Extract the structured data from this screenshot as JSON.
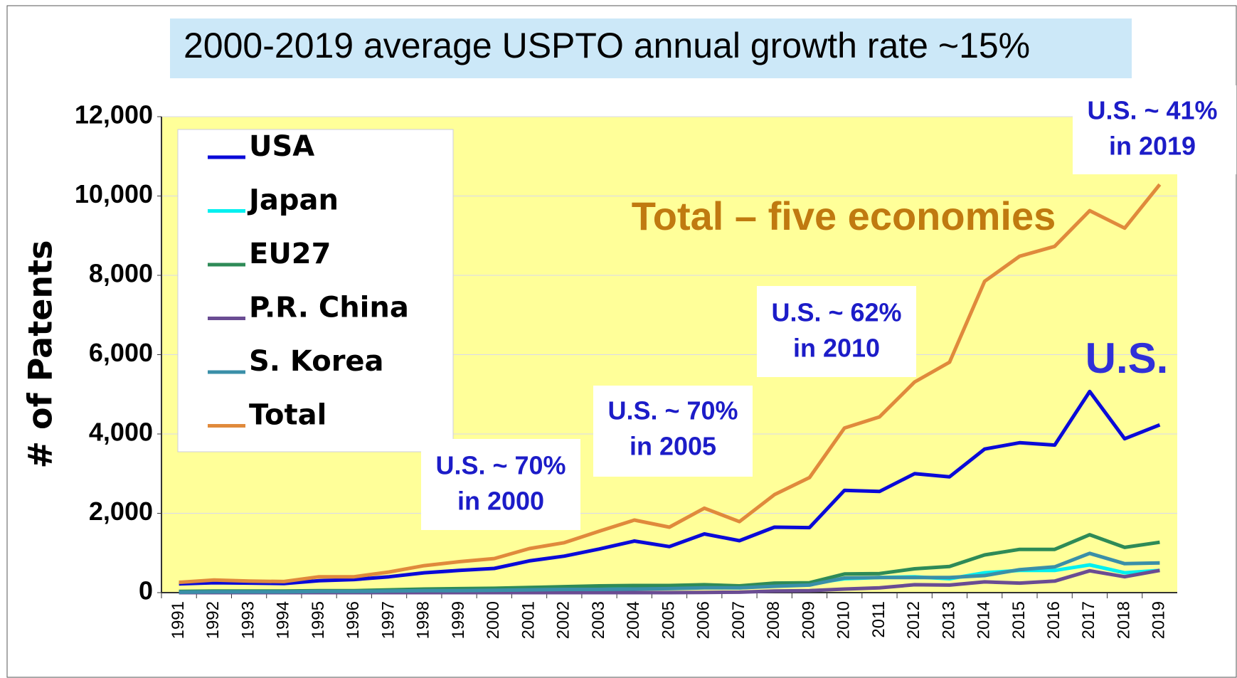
{
  "chart_data": {
    "type": "line",
    "title": "2000-2019  average USPTO annual growth rate  ~15%",
    "y_label": "# of Patents",
    "categories": [
      "1991",
      "1992",
      "1993",
      "1994",
      "1995",
      "1996",
      "1997",
      "1998",
      "1999",
      "2000",
      "2001",
      "2002",
      "2003",
      "2004",
      "2005",
      "2006",
      "2007",
      "2008",
      "2009",
      "2010",
      "2011",
      "2012",
      "2013",
      "2014",
      "2015",
      "2016",
      "2017",
      "2018",
      "2019"
    ],
    "series": [
      {
        "name": "USA",
        "color": "#0a0ad8",
        "values": [
          220,
          250,
          240,
          230,
          300,
          330,
          400,
          500,
          560,
          610,
          800,
          920,
          1100,
          1300,
          1160,
          1480,
          1310,
          1650,
          1640,
          2580,
          2550,
          3000,
          2920,
          3620,
          3780,
          3720,
          5070,
          3880,
          4230
        ]
      },
      {
        "name": "Japan",
        "color": "#00f0f0",
        "values": [
          20,
          25,
          25,
          25,
          30,
          30,
          40,
          50,
          60,
          70,
          80,
          90,
          100,
          110,
          110,
          130,
          120,
          170,
          220,
          350,
          380,
          400,
          350,
          500,
          560,
          560,
          700,
          500,
          560
        ]
      },
      {
        "name": "EU27",
        "color": "#2e8b57",
        "values": [
          30,
          40,
          40,
          40,
          50,
          50,
          70,
          90,
          100,
          110,
          130,
          150,
          170,
          180,
          180,
          200,
          170,
          240,
          250,
          470,
          480,
          600,
          660,
          950,
          1090,
          1090,
          1460,
          1140,
          1270
        ]
      },
      {
        "name": "P.R. China",
        "color": "#6a4c93",
        "values": [
          0,
          0,
          0,
          0,
          0,
          0,
          0,
          0,
          0,
          0,
          0,
          0,
          0,
          0,
          0,
          5,
          10,
          40,
          50,
          90,
          120,
          200,
          190,
          270,
          240,
          290,
          550,
          400,
          560
        ]
      },
      {
        "name": "S. Korea",
        "color": "#3a8fa8",
        "values": [
          10,
          20,
          20,
          20,
          30,
          30,
          40,
          50,
          50,
          60,
          70,
          80,
          80,
          90,
          100,
          120,
          120,
          160,
          190,
          370,
          380,
          380,
          380,
          430,
          580,
          650,
          990,
          730,
          750
        ]
      },
      {
        "name": "Total",
        "color": "#e08a3c",
        "values": [
          260,
          320,
          290,
          280,
          400,
          400,
          520,
          680,
          780,
          860,
          1110,
          1260,
          1550,
          1830,
          1650,
          2130,
          1790,
          2470,
          2900,
          4150,
          4430,
          5310,
          5810,
          7850,
          8480,
          8730,
          9630,
          9190,
          10290
        ]
      }
    ],
    "ylim": [
      0,
      12000
    ],
    "yticks": [
      0,
      {
        "value": 2000,
        "label": "2,000"
      },
      {
        "value": 4000,
        "label": "4,000"
      },
      {
        "value": 6000,
        "label": "6,000"
      },
      {
        "value": 8000,
        "label": "8,000"
      },
      {
        "value": 10000,
        "label": "10,000"
      },
      {
        "value": 12000,
        "label": "12,000"
      }
    ],
    "grid": true,
    "legend": "upper left",
    "annotations": [
      {
        "lines": [
          "U.S. ~ 70%",
          "in 2000"
        ]
      },
      {
        "lines": [
          "U.S. ~ 70%",
          "in 2005"
        ]
      },
      {
        "lines": [
          "U.S. ~ 62%",
          "in 2010"
        ]
      },
      {
        "lines": [
          "U.S. ~ 41%",
          "in 2019"
        ]
      },
      {
        "lines": [
          "Total – five economies"
        ]
      },
      {
        "lines": [
          "U.S."
        ]
      }
    ]
  }
}
